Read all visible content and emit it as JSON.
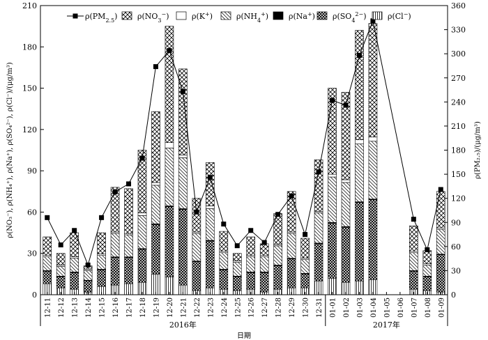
{
  "chart_data": {
    "type": "bar",
    "stacked": true,
    "categories": [
      "12-11",
      "12-12",
      "12-13",
      "12-14",
      "12-15",
      "12-16",
      "12-17",
      "12-18",
      "12-19",
      "12-20",
      "12-21",
      "12-22",
      "12-23",
      "12-24",
      "12-25",
      "12-26",
      "12-27",
      "12-28",
      "12-29",
      "12-30",
      "12-31",
      "01-01",
      "01-02",
      "01-03",
      "01-04",
      "01-05",
      "01-06",
      "01-07",
      "01-08",
      "01-09"
    ],
    "group_labels": [
      {
        "label": "2016年",
        "from": "12-11",
        "to": "12-31"
      },
      {
        "label": "2017年",
        "from": "01-01",
        "to": "01-09"
      }
    ],
    "xlabel": "日期",
    "ylabel": "ρ(NO₃⁻), ρ(NH₄⁺), ρ(Na⁺), ρ(SO₄²⁻), ρ(Cl⁻)/(μg/m³)",
    "ylabel_right": "ρ(PM₂.₅)/(μg/m³)",
    "ylim": [
      0,
      210
    ],
    "yticks": [
      0,
      30,
      60,
      90,
      120,
      150,
      180,
      210
    ],
    "ylim_right": [
      0,
      360
    ],
    "yticks_right": [
      0,
      30,
      60,
      90,
      120,
      150,
      180,
      210,
      240,
      270,
      300,
      330,
      360
    ],
    "legend": [
      {
        "key": "pm25",
        "label": "ρ(PM2.5)"
      },
      {
        "key": "no3",
        "label": "ρ(NO3−)"
      },
      {
        "key": "k",
        "label": "ρ(K+)"
      },
      {
        "key": "nh4",
        "label": "ρ(NH4+)"
      },
      {
        "key": "na",
        "label": "ρ(Na+)"
      },
      {
        "key": "so4",
        "label": "ρ(SO42−)"
      },
      {
        "key": "cl",
        "label": "ρ(Cl−)"
      }
    ],
    "series": [
      {
        "key": "cl",
        "values": [
          8,
          5,
          4,
          2,
          6,
          7,
          8,
          9,
          15,
          13,
          7,
          3,
          5,
          4,
          3,
          4,
          2,
          4,
          5,
          5,
          10,
          12,
          9,
          10,
          11,
          null,
          null,
          4,
          3,
          2
        ]
      },
      {
        "key": "so4",
        "values": [
          9,
          8,
          12,
          8,
          12,
          20,
          19,
          24,
          36,
          51,
          55,
          21,
          34,
          14,
          10,
          12,
          14,
          17,
          21,
          10,
          27,
          40,
          40,
          57,
          58,
          null,
          null,
          13,
          10,
          27
        ]
      },
      {
        "key": "na",
        "values": [
          0.5,
          0.5,
          0.5,
          0.5,
          0.5,
          0.5,
          0.5,
          0.5,
          0.5,
          0.5,
          0.5,
          0.5,
          0.5,
          0.5,
          0.5,
          0.5,
          0.5,
          0.5,
          0.5,
          0.5,
          0.5,
          0.5,
          0.5,
          0.5,
          0.5,
          null,
          null,
          0.5,
          0.5,
          0.5
        ]
      },
      {
        "key": "nh4",
        "values": [
          10,
          7,
          10,
          7,
          10,
          17,
          16,
          24,
          28,
          42,
          37,
          20,
          23,
          12,
          10,
          11,
          11,
          14,
          18,
          10,
          22,
          33,
          32,
          42,
          42,
          null,
          null,
          13,
          8,
          18
        ]
      },
      {
        "key": "k",
        "values": [
          1,
          1,
          1,
          1,
          1,
          1,
          1,
          2,
          2,
          4,
          2,
          1,
          2,
          1,
          1,
          1,
          1,
          1,
          1,
          1,
          1,
          2,
          2,
          3,
          3,
          null,
          null,
          1,
          1,
          1
        ]
      },
      {
        "key": "no3",
        "values": [
          13.5,
          8.5,
          17.5,
          2.5,
          15.5,
          32.5,
          32.5,
          45.5,
          51.5,
          84.5,
          62.5,
          24.5,
          31.5,
          14.5,
          5.5,
          13.5,
          8.5,
          22.5,
          29.5,
          14.5,
          37.5,
          62.5,
          63.5,
          79.5,
          82.5,
          null,
          null,
          18.5,
          9.5,
          26.5
        ]
      }
    ],
    "line": {
      "key": "pm25",
      "axis": "right",
      "values": [
        96,
        62,
        80,
        37,
        96,
        128,
        138,
        170,
        284,
        304,
        253,
        103,
        146,
        88,
        61,
        80,
        65,
        100,
        123,
        75,
        153,
        242,
        236,
        298,
        341,
        null,
        null,
        94,
        56,
        131
      ]
    }
  }
}
